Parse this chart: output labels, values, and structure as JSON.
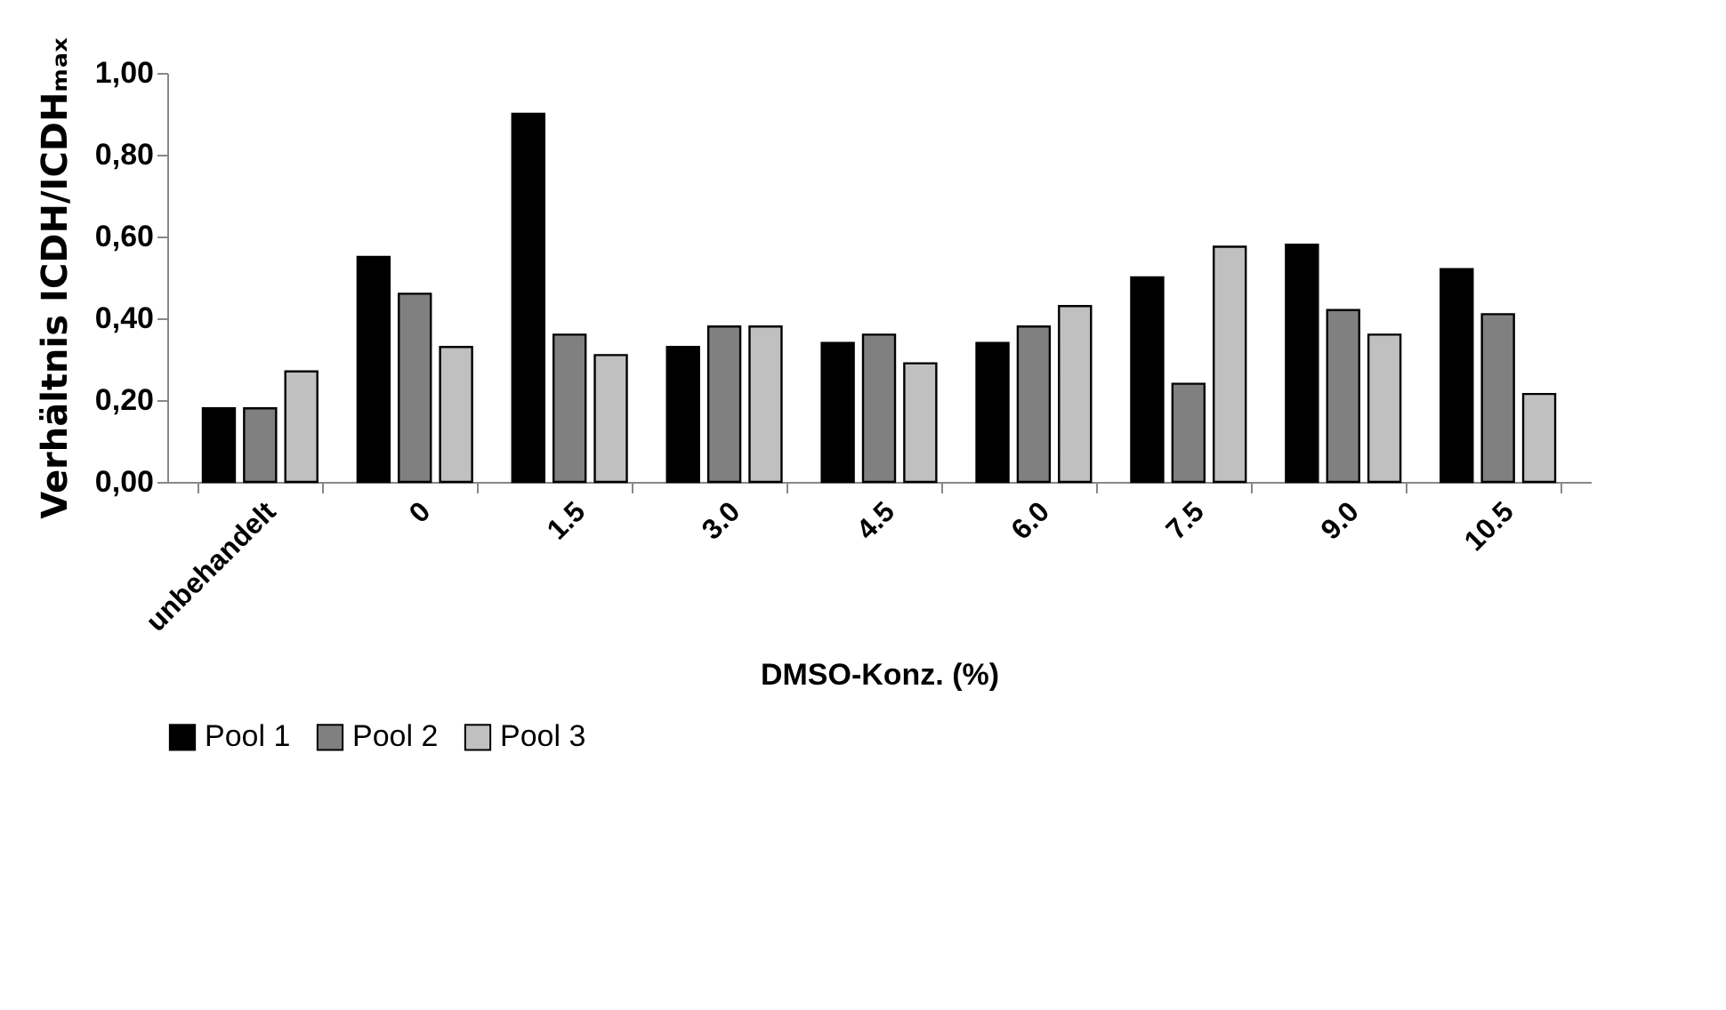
{
  "chart_data": {
    "type": "bar",
    "xlabel": "DMSO-Konz. (%)",
    "ylabel": "Verhältnis ICDH/ICDHₘₐₓ",
    "categories": [
      "unbehandelt",
      "0",
      "1.5",
      "3.0",
      "4.5",
      "6.0",
      "7.5",
      "9.0",
      "10.5"
    ],
    "series": [
      {
        "name": "Pool 1",
        "color": "#000000",
        "values": [
          0.18,
          0.55,
          0.9,
          0.33,
          0.34,
          0.34,
          0.5,
          0.58,
          0.52
        ]
      },
      {
        "name": "Pool 2",
        "color": "#808080",
        "values": [
          0.18,
          0.46,
          0.36,
          0.38,
          0.36,
          0.38,
          0.24,
          0.42,
          0.41
        ]
      },
      {
        "name": "Pool 3",
        "color": "#c0c0c0",
        "values": [
          0.27,
          0.33,
          0.31,
          0.38,
          0.29,
          0.43,
          0.575,
          0.36,
          0.215
        ]
      }
    ],
    "ylim": [
      0,
      1
    ],
    "yticks": [
      {
        "value": 0,
        "label": "0,00"
      },
      {
        "value": 0.2,
        "label": "0,20"
      },
      {
        "value": 0.4,
        "label": "0,40"
      },
      {
        "value": 0.6,
        "label": "0,60"
      },
      {
        "value": 0.8,
        "label": "0,80"
      },
      {
        "value": 1,
        "label": "1,00"
      }
    ],
    "grid": false,
    "legend": "bottom"
  }
}
